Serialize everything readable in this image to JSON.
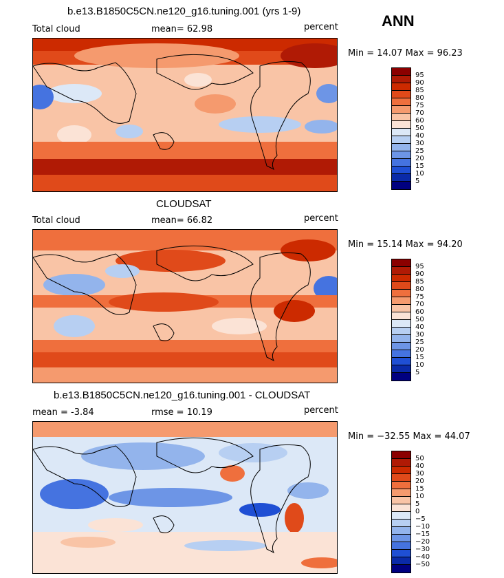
{
  "season": "ANN",
  "panels": [
    {
      "title": "b.e13.B1850C5CN.ne120_g16.tuning.001 (yrs 1-9)",
      "left_label": "Total cloud",
      "mid_label": "mean=   62.98",
      "right_label": "percent",
      "minmax": "Min =   14.07  Max =   96.23"
    },
    {
      "title": "CLOUDSAT",
      "left_label": "Total cloud",
      "mid_label": "mean=   66.82",
      "right_label": "percent",
      "minmax": "Min =   15.14  Max =   94.20"
    },
    {
      "title": "b.e13.B1850C5CN.ne120_g16.tuning.001 - CLOUDSAT",
      "left_label": "mean =   -3.84",
      "mid_label": "rmse =   10.19",
      "right_label": "percent",
      "minmax": "Min = −32.55  Max =   44.07"
    }
  ],
  "colorbar_abs": {
    "labels": [
      "95",
      "90",
      "85",
      "80",
      "75",
      "70",
      "60",
      "50",
      "40",
      "30",
      "25",
      "20",
      "15",
      "10",
      "5"
    ],
    "colors": [
      "#8b0000",
      "#b01a05",
      "#cc2a00",
      "#e04a1a",
      "#ef6f3d",
      "#f59a6e",
      "#f9c4a6",
      "#fbe3d6",
      "#dce8f7",
      "#b7cff2",
      "#93b4ec",
      "#6d95e6",
      "#4573e0",
      "#1f4fd4",
      "#0a2aa8",
      "#000080"
    ]
  },
  "colorbar_diff": {
    "labels": [
      "50",
      "40",
      "30",
      "20",
      "15",
      "10",
      "5",
      "0",
      "−5",
      "−10",
      "−15",
      "−20",
      "−30",
      "−40",
      "−50"
    ],
    "colors": [
      "#8b0000",
      "#b01a05",
      "#cc2a00",
      "#e04a1a",
      "#ef6f3d",
      "#f59a6e",
      "#f9c4a6",
      "#fbe3d6",
      "#dce8f7",
      "#b7cff2",
      "#93b4ec",
      "#6d95e6",
      "#4573e0",
      "#1f4fd4",
      "#0a2aa8",
      "#000080"
    ]
  }
}
